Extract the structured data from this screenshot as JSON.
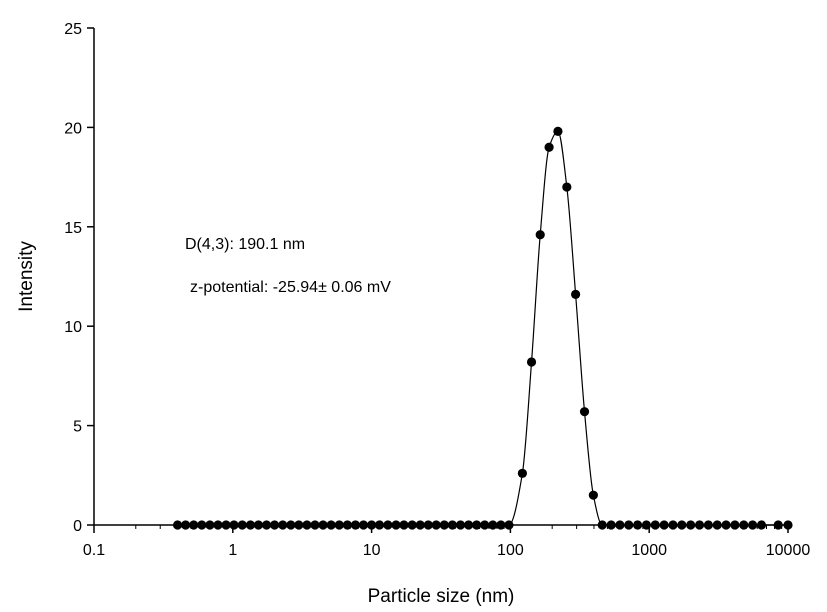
{
  "chart_data": {
    "type": "scatter",
    "xlabel": "Particle size (nm)",
    "ylabel": "Intensity",
    "xscale": "log",
    "xlim": [
      0.1,
      10000
    ],
    "ylim": [
      0,
      25
    ],
    "grid": false,
    "x_ticks": [
      0.1,
      1,
      10,
      100,
      1000,
      10000
    ],
    "x_tick_labels": [
      "0.1",
      "1",
      "10",
      "100",
      "1000",
      "10000"
    ],
    "y_ticks": [
      0,
      5,
      10,
      15,
      20,
      25
    ],
    "y_tick_labels": [
      "0",
      "5",
      "10",
      "15",
      "20",
      "25"
    ],
    "annotations": [
      "D(4,3): 190.1 nm",
      "z-potential: -25.94± 0.06 mV"
    ],
    "series": [
      {
        "marker": "filled-circle",
        "color": "#000000",
        "x": [
          0.4,
          0.457,
          0.523,
          0.598,
          0.684,
          0.782,
          0.894,
          1.02,
          1.17,
          1.34,
          1.53,
          1.75,
          2.0,
          2.29,
          2.62,
          2.99,
          3.42,
          3.91,
          4.47,
          5.11,
          5.85,
          6.69,
          7.65,
          8.74,
          10.0,
          11.4,
          13.1,
          15.0,
          17.1,
          19.6,
          22.4,
          25.6,
          29.2,
          33.4,
          38.2,
          43.7,
          50.0,
          57.1,
          65.3,
          74.7,
          85.4,
          97.6,
          122,
          142,
          164,
          190,
          220,
          255,
          295,
          342,
          396,
          459,
          532,
          615,
          712,
          825,
          955,
          1106,
          1281,
          1484,
          1718,
          1990,
          2305,
          2669,
          3091,
          3580,
          4146,
          4802,
          5561,
          6440,
          8500,
          10000
        ],
        "y": [
          0,
          0,
          0,
          0,
          0,
          0,
          0,
          0,
          0,
          0,
          0,
          0,
          0,
          0,
          0,
          0,
          0,
          0,
          0,
          0,
          0,
          0,
          0,
          0,
          0,
          0,
          0,
          0,
          0,
          0,
          0,
          0,
          0,
          0,
          0,
          0,
          0,
          0,
          0,
          0,
          0,
          0,
          2.6,
          8.2,
          14.6,
          19.0,
          19.8,
          17.0,
          11.6,
          5.7,
          1.5,
          0,
          0,
          0,
          0,
          0,
          0,
          0,
          0,
          0,
          0,
          0,
          0,
          0,
          0,
          0,
          0,
          0,
          0,
          0,
          0,
          0
        ]
      }
    ]
  }
}
